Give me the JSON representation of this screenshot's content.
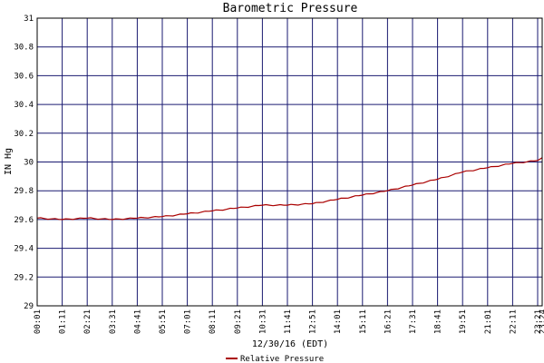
{
  "chart_data": {
    "type": "line",
    "title": "Barometric Pressure",
    "xlabel": "12/30/16 (EDT)",
    "ylabel": "IN Hg",
    "ylim": [
      29,
      31
    ],
    "yticks": [
      "31",
      "30.8",
      "30.6",
      "30.4",
      "30.2",
      "30",
      "29.8",
      "29.6",
      "29.4",
      "29.2",
      "29"
    ],
    "categories": [
      "00:01",
      "01:11",
      "02:21",
      "03:31",
      "04:41",
      "05:51",
      "07:01",
      "08:11",
      "09:21",
      "10:31",
      "11:41",
      "12:51",
      "14:01",
      "15:11",
      "16:21",
      "17:31",
      "18:41",
      "19:51",
      "21:01",
      "22:11",
      "23:21",
      "23:24"
    ],
    "grid": true,
    "legend_position": "bottom-center",
    "colors": {
      "series": "#aa0000",
      "grid": "#1a1a70",
      "axis": "#000000"
    },
    "series": [
      {
        "name": "Relative Pressure",
        "values": [
          29.61,
          29.6,
          29.61,
          29.6,
          29.61,
          29.62,
          29.64,
          29.66,
          29.68,
          29.7,
          29.7,
          29.71,
          29.74,
          29.77,
          29.8,
          29.84,
          29.88,
          29.93,
          29.96,
          29.99,
          30.01,
          30.03
        ]
      }
    ]
  }
}
